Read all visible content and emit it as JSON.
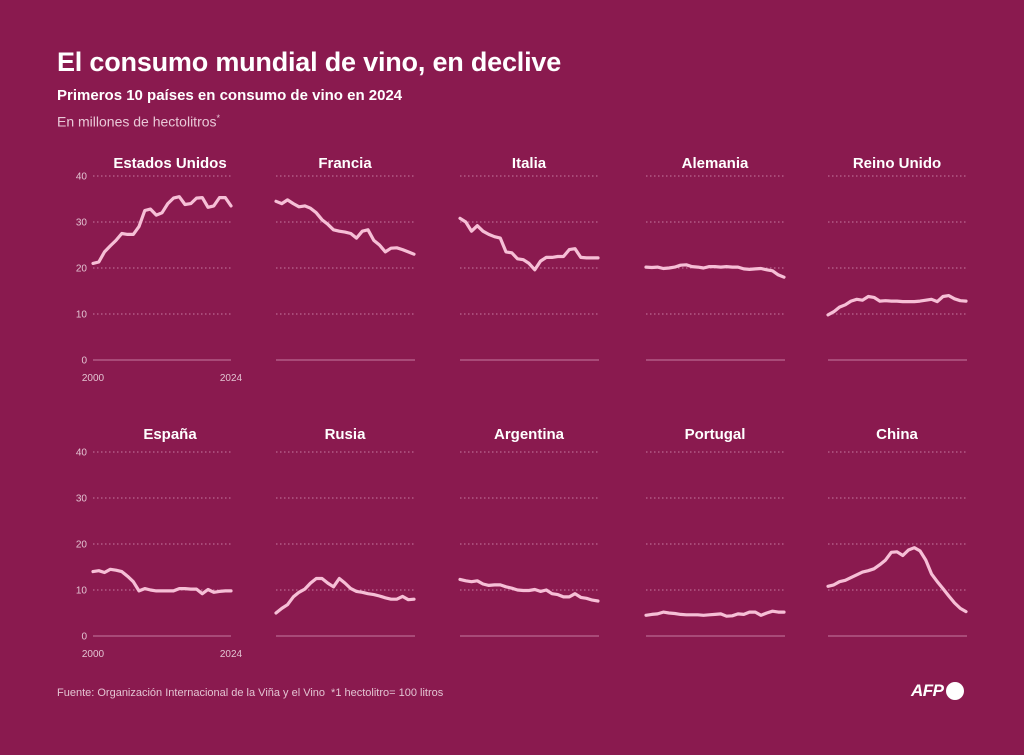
{
  "header": {
    "title": "El consumo mundial de vino, en declive",
    "subtitle": "Primeros 10 países en consumo de vino en 2024",
    "unit": "En millones de hectolitros",
    "unit_mark": "*"
  },
  "footer": {
    "source": "Fuente: Organización Internacional de la Viña y el Vino",
    "note": "*1 hectolitro= 100 litros",
    "logo": "AFP"
  },
  "colors": {
    "background": "#8a1a4f",
    "line": "#f6bfd6",
    "grid": "#c57aa0",
    "text": "#ffffff"
  },
  "chart_data": {
    "type": "line",
    "x": [
      2000,
      2001,
      2002,
      2003,
      2004,
      2005,
      2006,
      2007,
      2008,
      2009,
      2010,
      2011,
      2012,
      2013,
      2014,
      2015,
      2016,
      2017,
      2018,
      2019,
      2020,
      2021,
      2022,
      2023,
      2024
    ],
    "x_tick_labels": [
      "2000",
      "2024"
    ],
    "ylim": [
      0,
      40
    ],
    "y_ticks": [
      0,
      10,
      20,
      30,
      40
    ],
    "panels": [
      {
        "name": "Estados Unidos",
        "values": [
          21,
          21.3,
          23.5,
          24.8,
          26,
          27.5,
          27.3,
          27.3,
          29,
          32.5,
          32.8,
          31.5,
          32,
          34,
          35.2,
          35.5,
          33.8,
          34,
          35.2,
          35.3,
          33.2,
          33.5,
          35.3,
          35.3,
          33.5
        ]
      },
      {
        "name": "Francia",
        "values": [
          34.5,
          34,
          34.8,
          34,
          33.3,
          33.5,
          33,
          32,
          30.5,
          29.5,
          28.3,
          28,
          27.8,
          27.5,
          26.5,
          28,
          28.3,
          26,
          25,
          23.5,
          24.3,
          24.4,
          24,
          23.5,
          23
        ]
      },
      {
        "name": "Italia",
        "values": [
          30.8,
          30,
          28,
          29.2,
          28,
          27.3,
          26.8,
          26.5,
          23.5,
          23.3,
          22,
          21.8,
          21,
          19.6,
          21.5,
          22.3,
          22.3,
          22.5,
          22.5,
          24,
          24.2,
          22.3,
          22.2,
          22.2,
          22.2
        ]
      },
      {
        "name": "Alemania",
        "values": [
          20.2,
          20.1,
          20.2,
          19.9,
          20,
          20.2,
          20.6,
          20.7,
          20.3,
          20.2,
          20,
          20.3,
          20.3,
          20.2,
          20.3,
          20.2,
          20.2,
          19.8,
          19.7,
          19.8,
          19.9,
          19.6,
          19.4,
          18.5,
          18
        ]
      },
      {
        "name": "Reino Unido",
        "values": [
          9.8,
          10.5,
          11.5,
          12,
          12.8,
          13.2,
          13,
          13.8,
          13.6,
          12.8,
          12.9,
          12.8,
          12.8,
          12.7,
          12.7,
          12.7,
          12.8,
          13,
          13.2,
          12.7,
          13.8,
          14,
          13.3,
          12.9,
          12.8
        ]
      },
      {
        "name": "España",
        "values": [
          14,
          14.2,
          13.8,
          14.5,
          14.3,
          14,
          13,
          11.8,
          9.8,
          10.3,
          10,
          9.8,
          9.8,
          9.8,
          9.8,
          10.3,
          10.3,
          10.2,
          10.2,
          9.2,
          10.1,
          9.5,
          9.7,
          9.8,
          9.8
        ]
      },
      {
        "name": "Rusia",
        "values": [
          5,
          6,
          6.8,
          8.5,
          9.5,
          10.2,
          11.5,
          12.5,
          12.5,
          11.5,
          10.7,
          12.5,
          11.5,
          10.3,
          9.7,
          9.5,
          9.2,
          9,
          8.7,
          8.3,
          8,
          8,
          8.6,
          7.9,
          8
        ]
      },
      {
        "name": "Argentina",
        "values": [
          12.3,
          12,
          11.8,
          12,
          11.3,
          11,
          11.1,
          11.1,
          10.7,
          10.4,
          10,
          9.9,
          9.9,
          10.1,
          9.7,
          10,
          9.2,
          9,
          8.5,
          8.5,
          9.2,
          8.4,
          8.2,
          7.8,
          7.6
        ]
      },
      {
        "name": "Portugal",
        "values": [
          4.5,
          4.7,
          4.8,
          5.2,
          5,
          4.9,
          4.7,
          4.6,
          4.6,
          4.6,
          4.5,
          4.6,
          4.7,
          4.8,
          4.3,
          4.4,
          4.8,
          4.7,
          5.2,
          5.2,
          4.5,
          5,
          5.4,
          5.2,
          5.2
        ]
      },
      {
        "name": "China",
        "values": [
          10.8,
          11.1,
          11.8,
          12.1,
          12.7,
          13.3,
          13.9,
          14.2,
          14.6,
          15.5,
          16.5,
          18.2,
          18.3,
          17.5,
          18.7,
          19.2,
          18.5,
          16.5,
          13.5,
          11.8,
          10.3,
          8.7,
          7.2,
          6,
          5.3
        ]
      }
    ]
  }
}
